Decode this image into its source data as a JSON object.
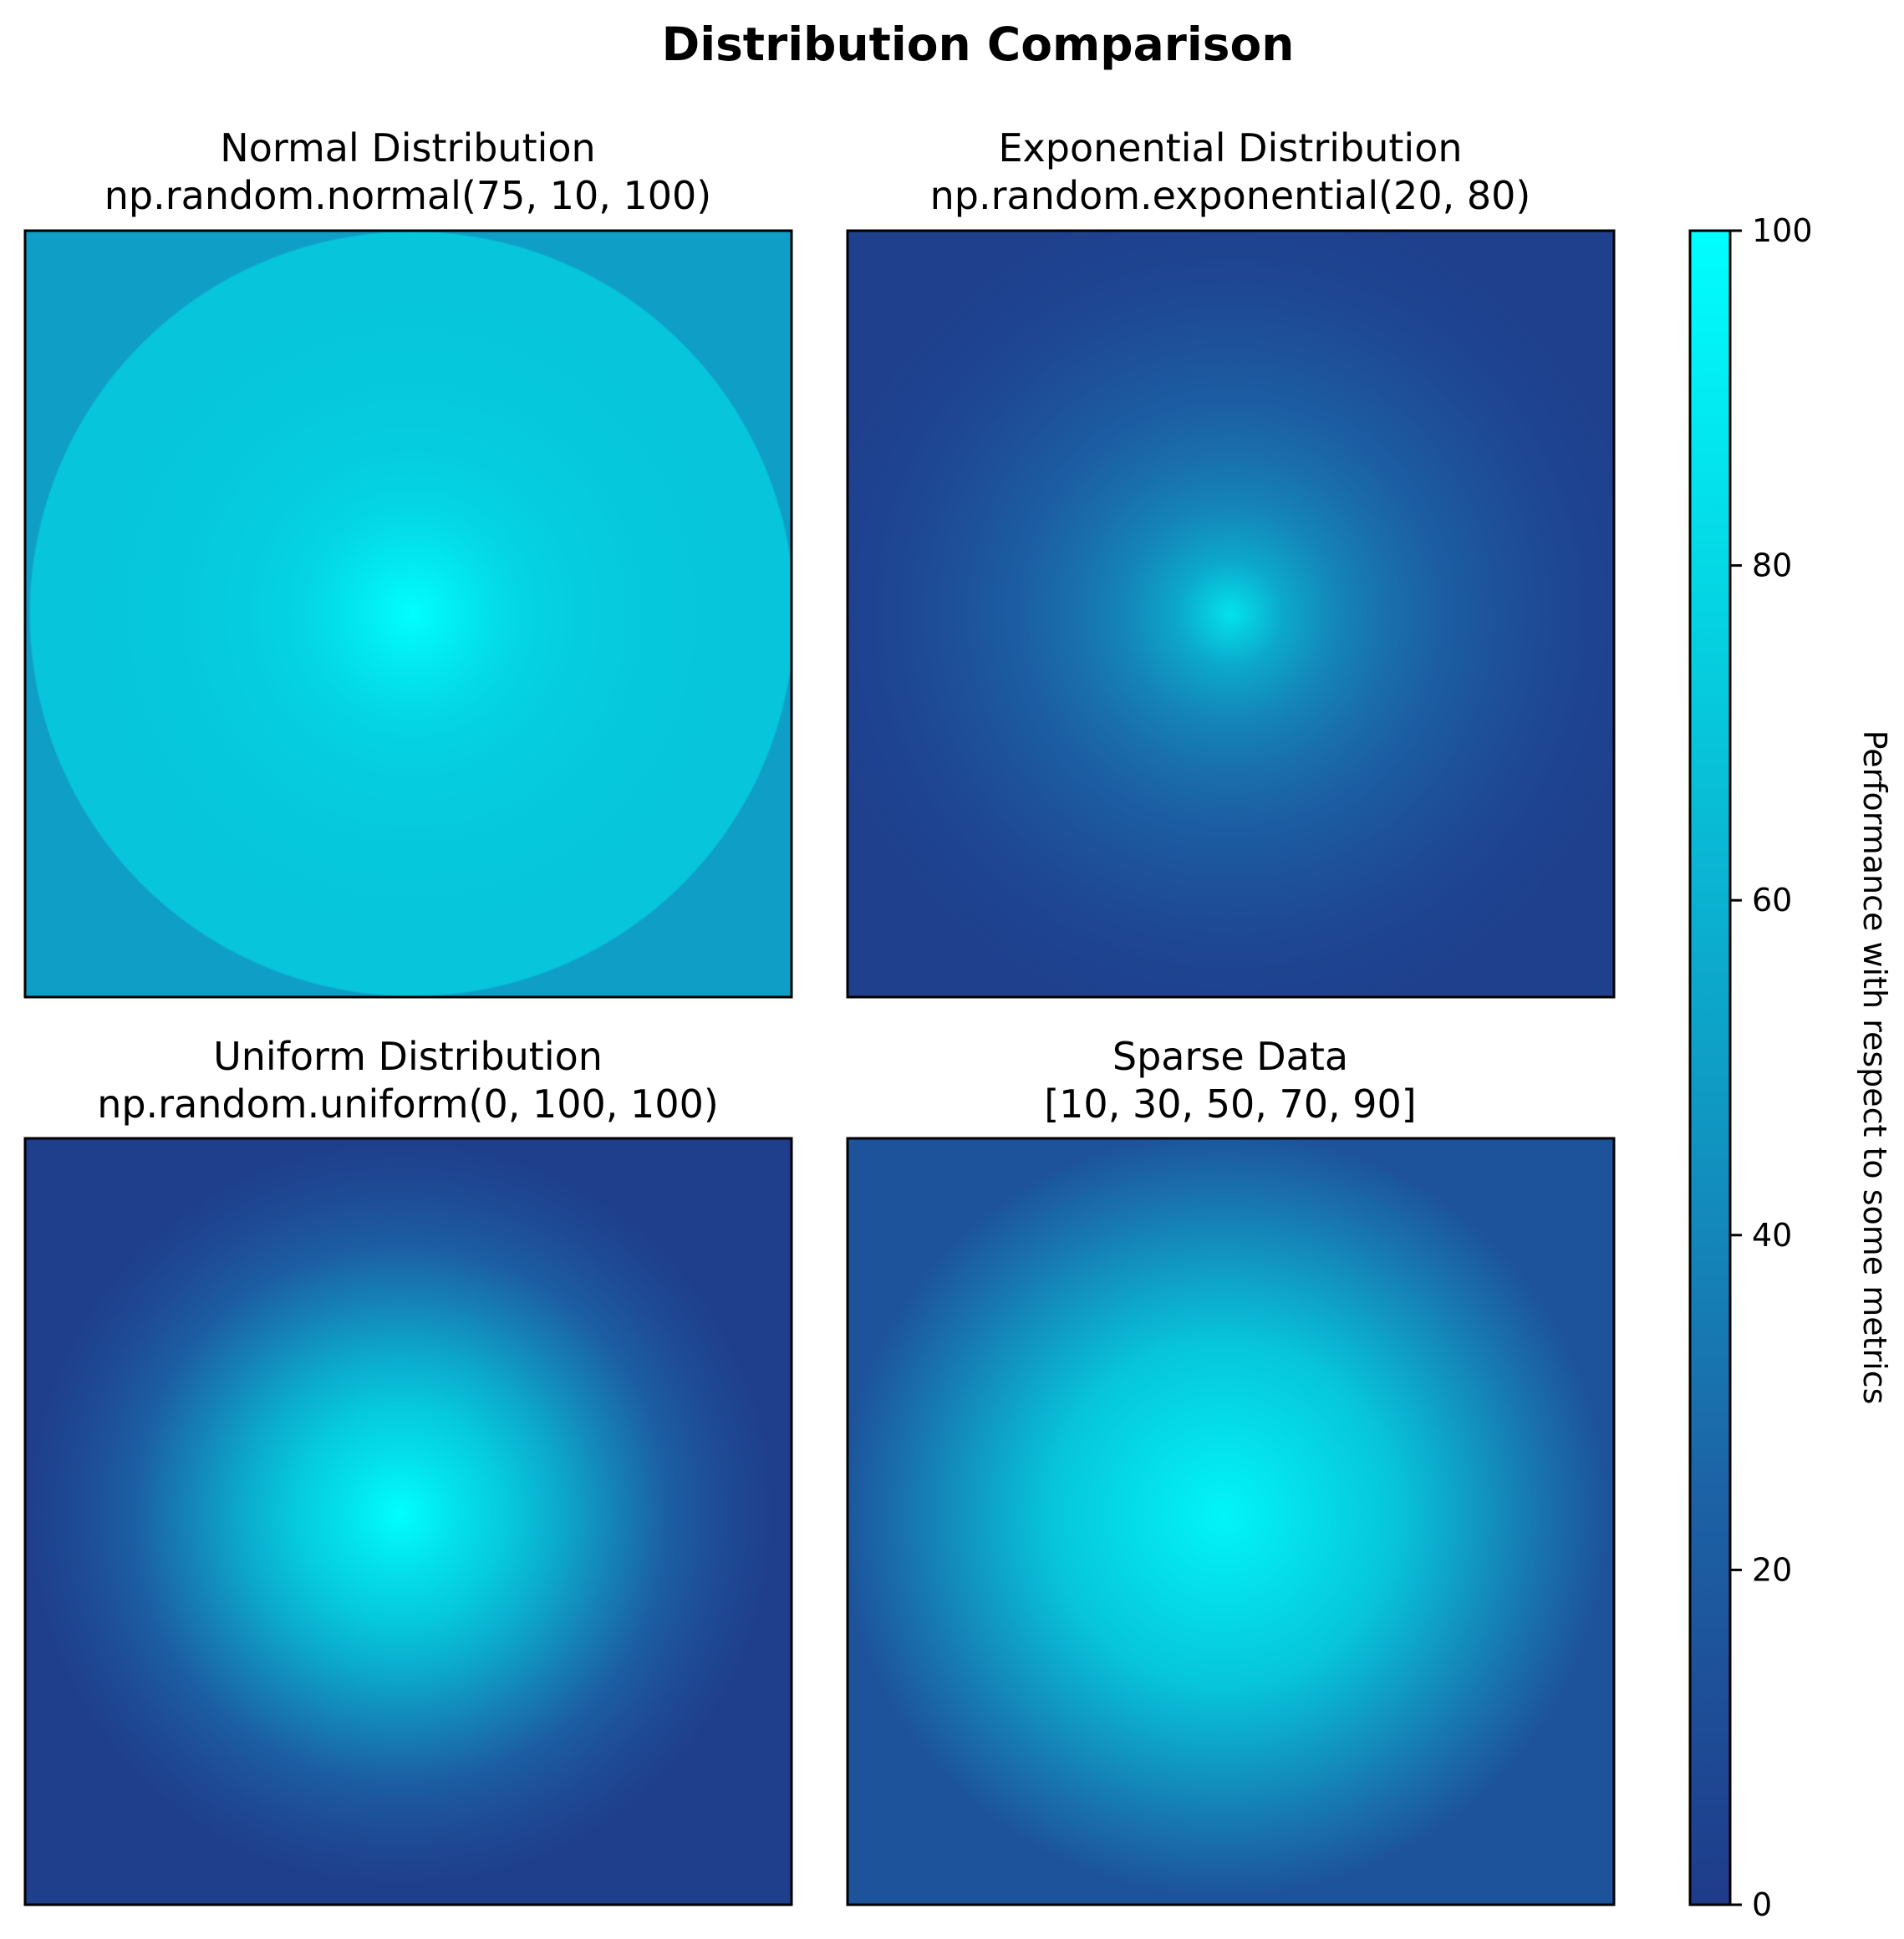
{
  "title": "Distribution Comparison",
  "colormap": {
    "name": "blue-to-cyan",
    "stops": [
      {
        "value": 0,
        "color": "#1f3b8a"
      },
      {
        "value": 25,
        "color": "#1c63a6"
      },
      {
        "value": 50,
        "color": "#0e9ec6"
      },
      {
        "value": 75,
        "color": "#05cfe0"
      },
      {
        "value": 100,
        "color": "#00ffff"
      }
    ]
  },
  "chart_data": [
    {
      "type": "heatmap",
      "title_line1": "Normal Distribution",
      "title_line2": "np.random.normal(75, 10, 100)",
      "pattern": "radial",
      "center_value": 100,
      "ring_values": [
        88,
        78,
        74,
        72,
        71,
        70
      ],
      "outer_value": 50
    },
    {
      "type": "heatmap",
      "title_line1": "Exponential Distribution",
      "title_line2": "np.random.exponential(20, 80)",
      "pattern": "radial",
      "center_value": 85,
      "ring_values": [
        55,
        40,
        30,
        22,
        15,
        9,
        5
      ],
      "outer_value": 3
    },
    {
      "type": "heatmap",
      "title_line1": "Uniform Distribution",
      "title_line2": "np.random.uniform(0, 100, 100)",
      "pattern": "radial",
      "center_value": 100,
      "ring_values": [
        85,
        72,
        55,
        38,
        22,
        10
      ],
      "outer_value": 2
    },
    {
      "type": "heatmap",
      "title_line1": "Sparse Data",
      "title_line2": "[10, 30, 50, 70, 90]",
      "pattern": "radial-smooth",
      "center_value": 95,
      "mid_value": 70,
      "edge_value": 30,
      "outer_value": 15
    }
  ],
  "colorbar": {
    "label": "Performance with respect to some metrics",
    "ticks": [
      "0",
      "20",
      "40",
      "60",
      "80",
      "100"
    ],
    "tick_values": [
      0,
      20,
      40,
      60,
      80,
      100
    ],
    "range": [
      0,
      100
    ]
  }
}
